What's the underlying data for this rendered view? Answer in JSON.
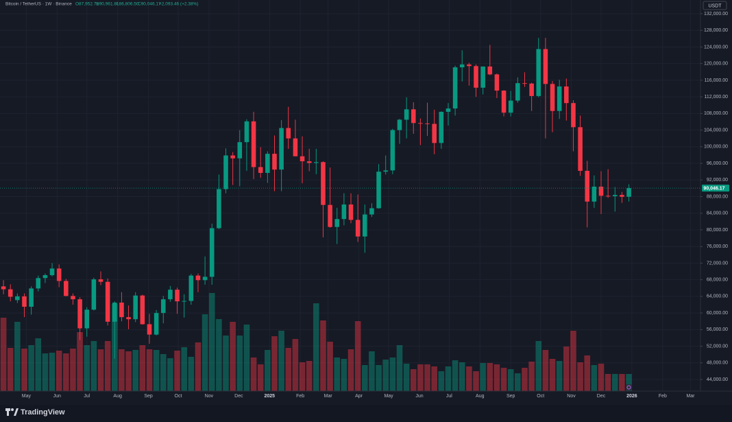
{
  "header": {
    "symbol": "Bitcoin / TetherUS · 1W · Binance",
    "open": "O87,952.71",
    "high": "H90,961.81",
    "low": "L86,806.50",
    "close": "C90,046.17",
    "change": "+2,093.46 (+2.38%)",
    "currency": "USDT",
    "brand": "TradingView"
  },
  "chart_data": {
    "type": "candlestick",
    "up_color": "#089981",
    "down_color": "#f23645",
    "last_price_label": "90,046.17",
    "xlim": [
      -0.5,
      100.3
    ],
    "xticks": [
      {
        "value": 3.286,
        "label": "May"
      },
      {
        "value": 7.714,
        "label": "Jun"
      },
      {
        "value": 12.0,
        "label": "Jul"
      },
      {
        "value": 16.43,
        "label": "Aug"
      },
      {
        "value": 20.86,
        "label": "Sep"
      },
      {
        "value": 25.14,
        "label": "Oct"
      },
      {
        "value": 29.57,
        "label": "Nov"
      },
      {
        "value": 33.86,
        "label": "Dec"
      },
      {
        "value": 38.29,
        "label": "2025"
      },
      {
        "value": 42.71,
        "label": "Feb"
      },
      {
        "value": 46.71,
        "label": "Mar"
      },
      {
        "value": 51.14,
        "label": "Apr"
      },
      {
        "value": 55.43,
        "label": "May"
      },
      {
        "value": 59.86,
        "label": "Jun"
      },
      {
        "value": 64.14,
        "label": "Jul"
      },
      {
        "value": 68.57,
        "label": "Aug"
      },
      {
        "value": 73.0,
        "label": "Sep"
      },
      {
        "value": 77.29,
        "label": "Oct"
      },
      {
        "value": 81.71,
        "label": "Nov"
      },
      {
        "value": 86.0,
        "label": "Dec"
      },
      {
        "value": 90.43,
        "label": "2026"
      },
      {
        "value": 94.86,
        "label": "Feb"
      },
      {
        "value": 98.86,
        "label": "Mar"
      }
    ],
    "ylim": [
      41200,
      135300
    ],
    "yticks": [
      {
        "value": 44000,
        "label": "44,000.00"
      },
      {
        "value": 48000,
        "label": "48,000.00"
      },
      {
        "value": 52000,
        "label": "52,000.00"
      },
      {
        "value": 56000,
        "label": "56,000.00"
      },
      {
        "value": 60000,
        "label": "60,000.00"
      },
      {
        "value": 64000,
        "label": "64,000.00"
      },
      {
        "value": 68000,
        "label": "68,000.00"
      },
      {
        "value": 72000,
        "label": "72,000.00"
      },
      {
        "value": 76000,
        "label": "76,000.00"
      },
      {
        "value": 80000,
        "label": "80,000.00"
      },
      {
        "value": 84000,
        "label": "84,000.00"
      },
      {
        "value": 88000,
        "label": "88,000.00"
      },
      {
        "value": 92000,
        "label": "92,000.00"
      },
      {
        "value": 96000,
        "label": "96,000.00"
      },
      {
        "value": 100000,
        "label": "100,000.00"
      },
      {
        "value": 104000,
        "label": "104,000.00"
      },
      {
        "value": 108000,
        "label": "108,000.00"
      },
      {
        "value": 112000,
        "label": "112,000.00"
      },
      {
        "value": 116000,
        "label": "116,000.00"
      },
      {
        "value": 120000,
        "label": "120,000.00"
      },
      {
        "value": 124000,
        "label": "124,000.00"
      },
      {
        "value": 128000,
        "label": "128,000.00"
      },
      {
        "value": 132000,
        "label": "132,000.00"
      }
    ],
    "grid": true,
    "volume_ylim": [
      0,
      400000
    ],
    "candles": [
      [
        66400,
        67900,
        64500,
        65700
      ],
      [
        65700,
        66900,
        62800,
        63900
      ],
      [
        63100,
        64700,
        62400,
        64000
      ],
      [
        64000,
        64700,
        59000,
        61500
      ],
      [
        61500,
        66400,
        59600,
        65900
      ],
      [
        65900,
        69000,
        65200,
        68400
      ],
      [
        68400,
        69500,
        67200,
        69100
      ],
      [
        69100,
        72000,
        68800,
        70700
      ],
      [
        70700,
        71700,
        66200,
        67700
      ],
      [
        67700,
        68200,
        64000,
        64100
      ],
      [
        64100,
        64700,
        62000,
        63300
      ],
      [
        63300,
        63800,
        53500,
        56300
      ],
      [
        56300,
        61400,
        54300,
        60800
      ],
      [
        60800,
        68500,
        60600,
        68100
      ],
      [
        68100,
        70000,
        66700,
        67500
      ],
      [
        67500,
        68300,
        57000,
        57900
      ],
      [
        57900,
        62800,
        49000,
        62500
      ],
      [
        62500,
        65000,
        58000,
        59000
      ],
      [
        59000,
        61800,
        56100,
        58500
      ],
      [
        58500,
        65000,
        57800,
        64200
      ],
      [
        64200,
        64400,
        57200,
        57300
      ],
      [
        57300,
        59800,
        52600,
        54800
      ],
      [
        54800,
        60700,
        54600,
        60000
      ],
      [
        60000,
        64100,
        57500,
        63300
      ],
      [
        63300,
        66500,
        62700,
        65600
      ],
      [
        65600,
        66100,
        59800,
        62800
      ],
      [
        62800,
        64500,
        58900,
        62900
      ],
      [
        62900,
        69400,
        62000,
        69000
      ],
      [
        69000,
        69500,
        65000,
        67900
      ],
      [
        67900,
        73600,
        66800,
        68700
      ],
      [
        68700,
        81500,
        66800,
        80400
      ],
      [
        80400,
        93300,
        80200,
        89800
      ],
      [
        89800,
        99600,
        88800,
        97900
      ],
      [
        97900,
        98700,
        90800,
        97200
      ],
      [
        97200,
        104000,
        90500,
        101100
      ],
      [
        101100,
        106600,
        94200,
        106100
      ],
      [
        106100,
        108400,
        92200,
        95100
      ],
      [
        95100,
        99900,
        92500,
        93700
      ],
      [
        93700,
        98900,
        91300,
        98300
      ],
      [
        98300,
        102700,
        89300,
        94500
      ],
      [
        94500,
        106400,
        89300,
        104500
      ],
      [
        104500,
        109600,
        99500,
        102000
      ],
      [
        102000,
        106500,
        97700,
        97700
      ],
      [
        97700,
        102500,
        91200,
        96500
      ],
      [
        96500,
        99500,
        94100,
        96100
      ],
      [
        96100,
        99500,
        93400,
        96300
      ],
      [
        96300,
        96500,
        78200,
        86000
      ],
      [
        86000,
        95000,
        80500,
        80700
      ],
      [
        80700,
        85300,
        76600,
        82600
      ],
      [
        82600,
        88800,
        81100,
        86100
      ],
      [
        86100,
        88800,
        81600,
        82400
      ],
      [
        82400,
        88500,
        77100,
        78400
      ],
      [
        78400,
        86100,
        74500,
        83700
      ],
      [
        83700,
        86400,
        83100,
        85200
      ],
      [
        85200,
        95800,
        85100,
        94000
      ],
      [
        94000,
        97900,
        93300,
        94300
      ],
      [
        94300,
        104300,
        93400,
        104000
      ],
      [
        104000,
        106700,
        100700,
        106500
      ],
      [
        106500,
        111900,
        102000,
        109000
      ],
      [
        109000,
        110700,
        103100,
        105700
      ],
      [
        105700,
        106800,
        100400,
        105600
      ],
      [
        105600,
        110600,
        102600,
        105500
      ],
      [
        105500,
        108900,
        98200,
        100900
      ],
      [
        100900,
        108500,
        99500,
        108400
      ],
      [
        108400,
        110500,
        105100,
        109200
      ],
      [
        109200,
        119500,
        107500,
        119100
      ],
      [
        119100,
        123200,
        115700,
        119800
      ],
      [
        119800,
        120200,
        114700,
        119400
      ],
      [
        119400,
        119800,
        112000,
        114200
      ],
      [
        114200,
        119300,
        112600,
        119300
      ],
      [
        119300,
        124500,
        117200,
        117400
      ],
      [
        117400,
        117600,
        111700,
        113500
      ],
      [
        113500,
        113600,
        107300,
        108200
      ],
      [
        108200,
        113400,
        107300,
        111100
      ],
      [
        111100,
        116700,
        110600,
        115300
      ],
      [
        115300,
        117900,
        114400,
        115200
      ],
      [
        115200,
        115400,
        108600,
        112200
      ],
      [
        112200,
        126200,
        111900,
        123500
      ],
      [
        123500,
        126200,
        102000,
        115100
      ],
      [
        115100,
        115800,
        103500,
        108600
      ],
      [
        108600,
        116100,
        106700,
        114500
      ],
      [
        114500,
        116400,
        106300,
        110500
      ],
      [
        110500,
        111200,
        98900,
        104700
      ],
      [
        104700,
        107500,
        93000,
        94200
      ],
      [
        94200,
        96600,
        80600,
        86800
      ],
      [
        86800,
        93100,
        85300,
        90400
      ],
      [
        90400,
        94100,
        83800,
        88200
      ],
      [
        88200,
        94600,
        87700,
        88100
      ],
      [
        88100,
        90300,
        84400,
        88400
      ],
      [
        88400,
        89100,
        86500,
        87950
      ],
      [
        87952.71,
        90961.81,
        86806.5,
        90046.17
      ]
    ],
    "volume": [
      214000,
      126000,
      202000,
      124000,
      134000,
      154000,
      110000,
      112000,
      118000,
      110000,
      124000,
      172000,
      134000,
      146000,
      122000,
      146000,
      254000,
      122000,
      116000,
      120000,
      134000,
      122000,
      120000,
      108000,
      96000,
      118000,
      128000,
      100000,
      142000,
      224000,
      286000,
      210000,
      162000,
      202000,
      162000,
      194000,
      98000,
      78000,
      120000,
      160000,
      176000,
      126000,
      152000,
      84000,
      88000,
      256000,
      206000,
      144000,
      98000,
      94000,
      122000,
      204000,
      76000,
      116000,
      76000,
      92000,
      98000,
      134000,
      80000,
      64000,
      78000,
      78000,
      72000,
      58000,
      72000,
      90000,
      84000,
      72000,
      58000,
      82000,
      82000,
      78000,
      68000,
      64000,
      52000,
      68000,
      86000,
      146000,
      120000,
      94000,
      88000,
      130000,
      176000,
      84000,
      104000,
      76000,
      80000,
      50000,
      50000,
      50000,
      50000
    ]
  }
}
